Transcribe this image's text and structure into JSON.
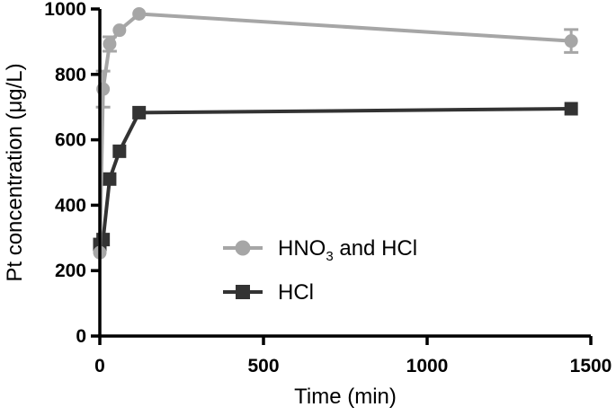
{
  "chart_data": {
    "type": "line",
    "xlabel": "Time (min)",
    "ylabel": "Pt concentration (μg/L)",
    "xlim": [
      0,
      1500
    ],
    "ylim": [
      0,
      1000
    ],
    "xticks": [
      "0",
      "500",
      "1000",
      "1500"
    ],
    "yticks": [
      "0",
      "200",
      "400",
      "600",
      "800",
      "1000"
    ],
    "grid": false,
    "legend_position": "bottom-center",
    "series": [
      {
        "name_main": "HNO",
        "name_sub": "3",
        "name_rest": " and HCl",
        "color": "#a6a6a6",
        "marker": "circle",
        "x": [
          0,
          10,
          30,
          60,
          120,
          1440
        ],
        "y": [
          255,
          755,
          893,
          935,
          985,
          902
        ],
        "err": [
          0,
          55,
          22,
          0,
          0,
          35
        ]
      },
      {
        "name": "HCl",
        "color": "#333333",
        "marker": "square",
        "x": [
          0,
          10,
          30,
          60,
          120,
          1440
        ],
        "y": [
          280,
          295,
          480,
          565,
          683,
          695
        ],
        "err": [
          0,
          0,
          0,
          0,
          0,
          0
        ]
      }
    ]
  }
}
